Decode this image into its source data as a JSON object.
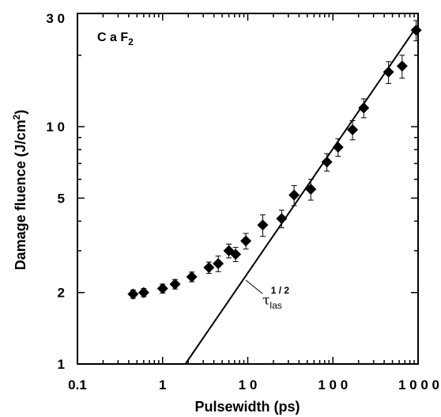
{
  "chart_data": {
    "type": "scatter",
    "xscale": "log",
    "yscale": "log",
    "xlim": [
      0.1,
      1000
    ],
    "ylim": [
      1,
      30
    ],
    "xlabel": "Pulsewidth (ps)",
    "ylabel": "Damage fluence (J/cm²)",
    "ylabel_parts": [
      "Damage fluence (J/cm",
      "2",
      ")"
    ],
    "xticks": [
      0.1,
      1,
      10,
      100,
      1000
    ],
    "xtick_labels": [
      "0.1",
      "1",
      "1 0",
      "1 0 0",
      "1 0 0 0"
    ],
    "yticks": [
      1,
      2,
      5,
      10,
      30
    ],
    "ytick_labels": [
      "1",
      "2",
      "5",
      "1 0",
      "3 0"
    ],
    "annotations": {
      "material": "C a F",
      "material_sub": "2",
      "fit_label_tau": "τ",
      "fit_label_sub": "las",
      "fit_label_exp": "1 / 2"
    },
    "series": [
      {
        "marker": "diamond",
        "color": "#000000",
        "x": [
          0.45,
          0.6,
          1.0,
          1.4,
          2.2,
          3.5,
          4.5,
          6.0,
          7.2,
          9.5,
          15,
          25,
          35,
          55,
          85,
          115,
          170,
          230,
          450,
          650,
          950
        ],
        "y": [
          1.97,
          2.0,
          2.08,
          2.17,
          2.33,
          2.55,
          2.65,
          3.0,
          2.9,
          3.3,
          3.85,
          4.1,
          5.15,
          5.45,
          7.1,
          8.2,
          9.7,
          12.0,
          17.0,
          18.0,
          25.5
        ],
        "err": [
          0.08,
          0.08,
          0.09,
          0.1,
          0.11,
          0.14,
          0.2,
          0.2,
          0.2,
          0.25,
          0.4,
          0.35,
          0.5,
          0.55,
          0.6,
          0.7,
          0.9,
          1.1,
          1.8,
          2.0,
          2.5
        ]
      }
    ],
    "fit_line": {
      "label": "τlas^1/2",
      "color": "#000000",
      "x": [
        1.85,
        970
      ],
      "y": [
        1.0,
        26.5
      ]
    }
  }
}
